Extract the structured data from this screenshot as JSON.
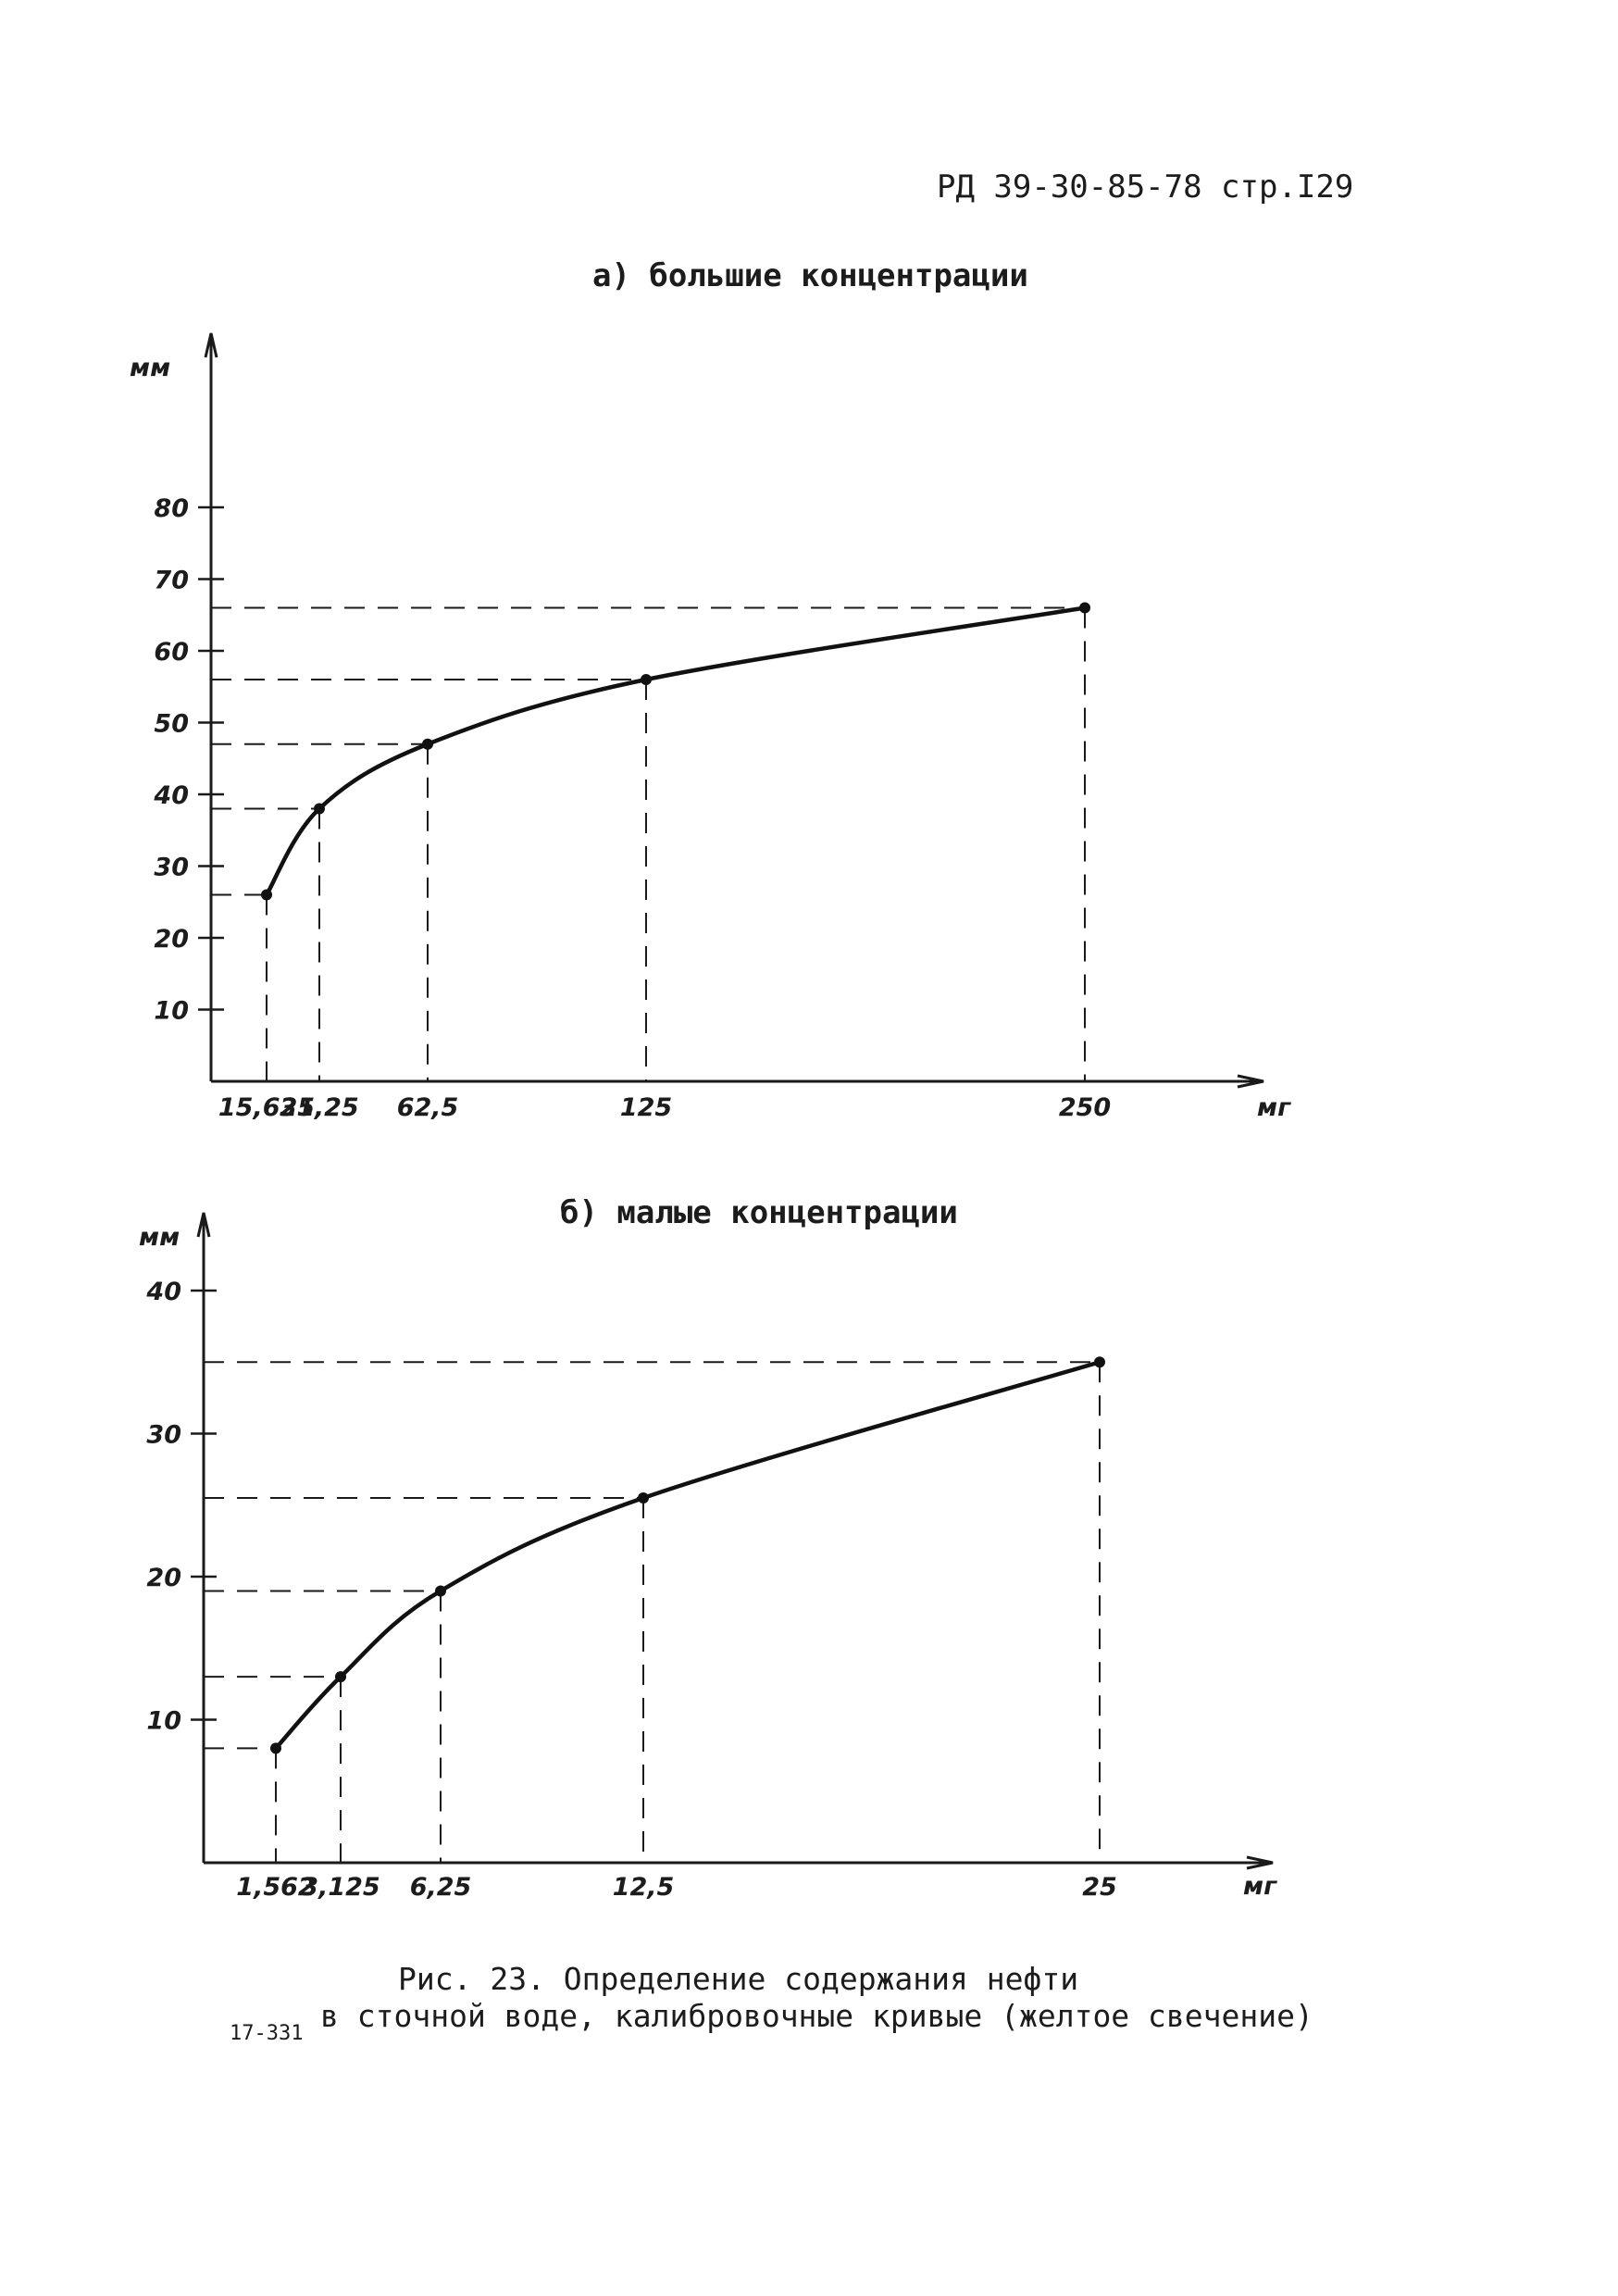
{
  "page": {
    "header": "РД 39-30-85-78 стр.I29",
    "caption_line1": "Рис. 23. Определение содержания нефти",
    "caption_line2": "в сточной воде, калибровочные кривые (желтое свечение)",
    "code": "17-331"
  },
  "chart_data": [
    {
      "type": "line",
      "title": "а) большие концентрации",
      "xlabel": "мг",
      "ylabel": "мм",
      "x_ticks": [
        "15,625",
        "31,25",
        "62,5",
        "125",
        "250"
      ],
      "y_ticks": [
        10,
        20,
        30,
        40,
        50,
        60,
        70,
        80
      ],
      "ylim": [
        0,
        100
      ],
      "grid": false,
      "guide_lines": "dashed",
      "points": [
        {
          "x": 15.625,
          "y": 26
        },
        {
          "x": 31.25,
          "y": 38
        },
        {
          "x": 62.5,
          "y": 47
        },
        {
          "x": 125,
          "y": 56
        },
        {
          "x": 250,
          "y": 66
        }
      ]
    },
    {
      "type": "line",
      "title": "б) малые концентрации",
      "xlabel": "мг",
      "ylabel": "мм",
      "x_ticks": [
        "1,562",
        "3,125",
        "6,25",
        "12,5",
        "25"
      ],
      "y_ticks": [
        10,
        20,
        30,
        40
      ],
      "ylim": [
        0,
        40
      ],
      "grid": false,
      "guide_lines": "dashed",
      "points": [
        {
          "x": 1.562,
          "y": 8
        },
        {
          "x": 3.125,
          "y": 13
        },
        {
          "x": 6.25,
          "y": 19
        },
        {
          "x": 12.5,
          "y": 25.5
        },
        {
          "x": 25,
          "y": 35
        }
      ]
    }
  ]
}
